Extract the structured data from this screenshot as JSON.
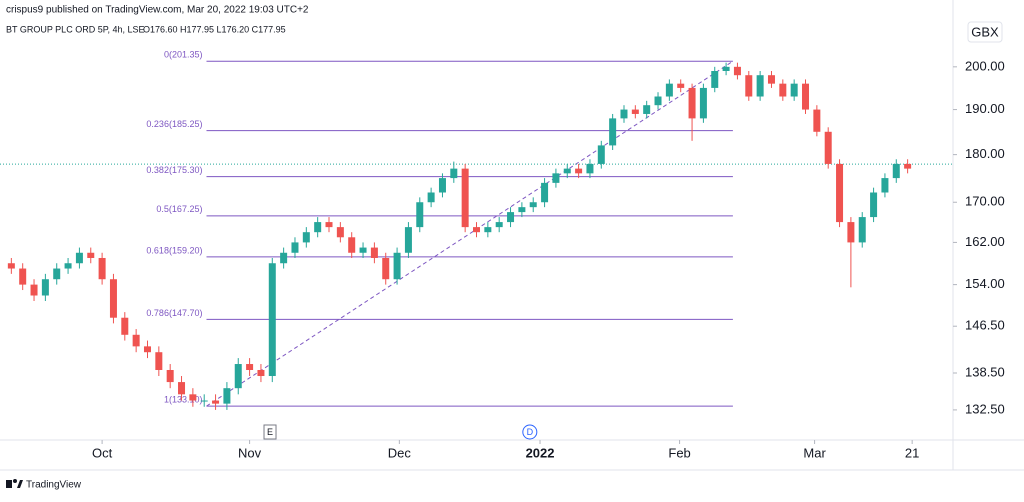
{
  "chart_data": {
    "type": "candlestick",
    "header": "crispus9 published on TradingView.com, Mar 20, 2022 19:03 UTC+2",
    "symbol": "BT GROUP PLC ORD 5P, 4h, LSE",
    "quote": "O176.60 H177.95 L176.20 C177.95",
    "currency": "GBX",
    "brand": "TradingView",
    "log_scale": true,
    "up_color": "#26a69a",
    "down_color": "#ef5350",
    "x": [
      1,
      2,
      3,
      4,
      5,
      6,
      7,
      8,
      9,
      10,
      11,
      12,
      13,
      14,
      15,
      16,
      17,
      18,
      19,
      20,
      21,
      22,
      23,
      24,
      25,
      26,
      27,
      28,
      29,
      30,
      31,
      32,
      33,
      34,
      35,
      36,
      37,
      38,
      39,
      40,
      41,
      42,
      43,
      44,
      45,
      46,
      47,
      48,
      49,
      50,
      51,
      52,
      53,
      54,
      55,
      56,
      57,
      58,
      59,
      60,
      61,
      62,
      63,
      64,
      65,
      66,
      67,
      68,
      69,
      70,
      71,
      72,
      73,
      74,
      75,
      76,
      77,
      78,
      79,
      80
    ],
    "open": [
      158,
      157,
      154,
      152,
      155,
      157,
      158,
      160,
      159,
      155,
      148,
      145,
      143,
      142,
      139,
      137,
      135,
      134,
      134,
      133.5,
      136,
      140,
      139,
      138,
      158,
      160,
      162,
      164,
      166,
      165,
      163,
      160,
      161,
      159,
      155,
      160,
      165,
      170,
      172,
      175,
      177,
      165,
      164,
      165,
      166,
      168,
      169,
      170,
      174,
      176,
      177,
      176,
      178,
      182,
      188,
      190,
      189,
      191,
      193,
      196,
      195,
      188,
      195,
      199,
      200,
      198,
      193,
      198,
      196,
      193,
      196,
      190,
      185,
      178,
      166,
      162,
      167,
      172,
      175,
      178
    ],
    "high": [
      159,
      158,
      155,
      156,
      158,
      159,
      161,
      161,
      160,
      156,
      149,
      146,
      144,
      143,
      140,
      138,
      136,
      135,
      135,
      137,
      141,
      141,
      140,
      159,
      161,
      163,
      165,
      167,
      167,
      166,
      164,
      162,
      162,
      160,
      161,
      166,
      171,
      173,
      176,
      178.5,
      178,
      166,
      166,
      167,
      169,
      170,
      171,
      175,
      177,
      178,
      178,
      179,
      183,
      189,
      191,
      191,
      192,
      194,
      197,
      197,
      196,
      196,
      200,
      201,
      201,
      199,
      199,
      199,
      197,
      197,
      197,
      191,
      186,
      179,
      167,
      168,
      173,
      176,
      179,
      179
    ],
    "low": [
      156,
      153,
      151,
      151,
      154,
      156,
      157,
      158,
      154,
      147,
      144,
      142,
      141,
      138,
      136,
      134,
      133,
      133,
      132.5,
      132.5,
      135,
      138,
      137,
      137,
      157,
      159,
      161,
      163,
      164,
      162,
      159,
      159,
      158,
      154,
      154,
      159,
      164,
      169,
      171,
      174,
      164,
      163,
      163,
      164,
      165,
      167,
      168,
      169,
      173,
      175,
      175,
      175,
      177,
      181,
      187,
      188,
      188,
      190,
      192,
      194,
      183,
      187,
      194,
      198,
      197,
      192,
      192,
      195,
      192,
      192,
      189,
      184,
      177,
      165,
      153.5,
      161,
      166,
      171,
      174,
      176
    ],
    "close": [
      157,
      154,
      152,
      155,
      157,
      158,
      160,
      159,
      155,
      148,
      145,
      143,
      142,
      139,
      137,
      135,
      134,
      134,
      133.5,
      136,
      140,
      139,
      138,
      158,
      160,
      162,
      164,
      166,
      165,
      163,
      160,
      161,
      159,
      155,
      160,
      165,
      170,
      172,
      175,
      177,
      165,
      164,
      165,
      166,
      168,
      169,
      170,
      174,
      176,
      177,
      176,
      178,
      182,
      188,
      190,
      189,
      191,
      193,
      196,
      195,
      188,
      195,
      199,
      200,
      198,
      193,
      198,
      196,
      193,
      196,
      190,
      185,
      178,
      166,
      162,
      167,
      172,
      175,
      178,
      177
    ],
    "last_price": 177.95,
    "fib_levels": [
      {
        "value": 201.35,
        "label": "0(201.35)"
      },
      {
        "value": 185.25,
        "label": "0.236(185.25)"
      },
      {
        "value": 175.3,
        "label": "0.382(175.30)"
      },
      {
        "value": 167.25,
        "label": "0.5(167.25)"
      },
      {
        "value": 159.2,
        "label": "0.618(159.20)"
      },
      {
        "value": 147.7,
        "label": "0.786(147.70)"
      },
      {
        "value": 133.1,
        "label": "1(133.10)"
      }
    ],
    "fib_color": "#7e57c2",
    "events": [
      {
        "x": 23.8,
        "label": "E"
      },
      {
        "x": 46.7,
        "label": "D"
      }
    ],
    "xlim": [
      0,
      84
    ],
    "xticks": [
      {
        "value": 9,
        "label": "Oct"
      },
      {
        "value": 22,
        "label": "Nov"
      },
      {
        "value": 35.2,
        "label": "Dec"
      },
      {
        "value": 47.6,
        "label": "2022"
      },
      {
        "value": 59.9,
        "label": "Feb"
      },
      {
        "value": 71.8,
        "label": "Mar"
      },
      {
        "value": 80.4,
        "label": "21"
      }
    ],
    "ylim": [
      127.8,
      216.7
    ],
    "yticks": [
      {
        "value": 200,
        "label": "200.00"
      },
      {
        "value": 190,
        "label": "190.00"
      },
      {
        "value": 180,
        "label": "180.00"
      },
      {
        "value": 170,
        "label": "170.00"
      },
      {
        "value": 162,
        "label": "162.00"
      },
      {
        "value": 154,
        "label": "154.00"
      },
      {
        "value": 146.5,
        "label": "146.50"
      },
      {
        "value": 138.5,
        "label": "138.50"
      },
      {
        "value": 132.5,
        "label": "132.50"
      }
    ]
  }
}
